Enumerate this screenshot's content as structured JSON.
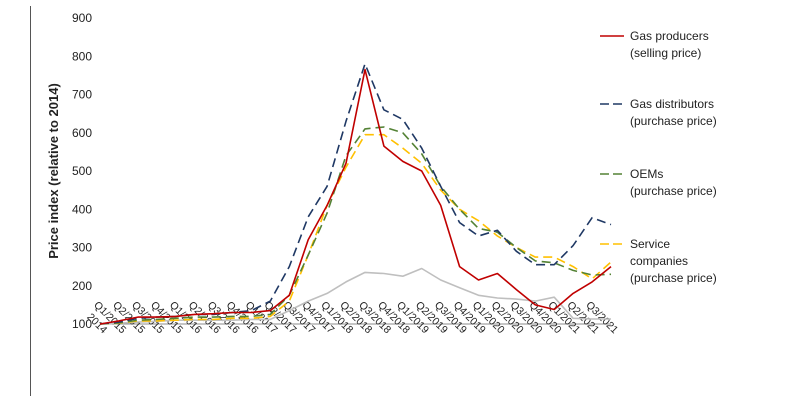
{
  "chart_data": {
    "type": "line",
    "ylabel": "Price index (relative to 2014)",
    "xlabel": "",
    "ylim": [
      100,
      900
    ],
    "yticks": [
      100,
      200,
      300,
      400,
      500,
      600,
      700,
      800,
      900
    ],
    "grid": false,
    "legend_position": "right",
    "categories": [
      "2014",
      "Q1/2015",
      "Q2/2015",
      "Q3/2015",
      "Q4/2015",
      "Q1/2016",
      "Q2/2016",
      "Q3/2016",
      "Q4/2016",
      "Q1/2017",
      "Q2/2017",
      "Q3/2017",
      "Q4/2017",
      "Q1/2018",
      "Q2/2018",
      "Q3/2018",
      "Q4/2018",
      "Q1/2019",
      "Q2/2019",
      "Q3/2019",
      "Q4/2019",
      "Q1/2020",
      "Q2/2020",
      "Q3/2020",
      "Q4/2020",
      "Q1/2021",
      "Q2/2021",
      "Q3/2021"
    ],
    "series": [
      {
        "name": "Gas producers (selling price)",
        "legend_lines": [
          "Gas producers",
          "(selling price)"
        ],
        "color": "#c00000",
        "style": "solid",
        "values": [
          100,
          108,
          118,
          118,
          120,
          125,
          127,
          130,
          130,
          135,
          175,
          320,
          410,
          520,
          765,
          565,
          525,
          500,
          410,
          250,
          215,
          232,
          190,
          150,
          138,
          180,
          210,
          250
        ]
      },
      {
        "name": "Gas distributors (purchase price)",
        "legend_lines": [
          "Gas distributors",
          "(purchase price)"
        ],
        "color": "#1f3864",
        "style": "dash",
        "values": [
          100,
          105,
          115,
          118,
          120,
          125,
          125,
          130,
          135,
          160,
          250,
          380,
          460,
          630,
          780,
          660,
          635,
          560,
          460,
          365,
          330,
          345,
          290,
          255,
          255,
          305,
          378,
          360
        ]
      },
      {
        "name": "OEMs (purchase price)",
        "legend_lines": [
          "OEMs",
          "(purchase price)"
        ],
        "color": "#548235",
        "style": "dash",
        "values": [
          100,
          103,
          110,
          112,
          115,
          118,
          118,
          120,
          120,
          125,
          175,
          280,
          390,
          540,
          610,
          615,
          600,
          545,
          460,
          400,
          350,
          340,
          300,
          265,
          260,
          240,
          228,
          230
        ]
      },
      {
        "name": "Service companies (purchase price)",
        "legend_lines": [
          "Service",
          "companies",
          "(purchase price)"
        ],
        "color": "#ffc000",
        "style": "dash",
        "values": [
          100,
          102,
          108,
          108,
          110,
          112,
          112,
          115,
          115,
          120,
          160,
          280,
          410,
          510,
          595,
          595,
          560,
          520,
          450,
          400,
          370,
          330,
          300,
          275,
          275,
          250,
          218,
          262
        ]
      },
      {
        "name": "",
        "legend_lines": [],
        "color": "#bfbfbf",
        "style": "solid",
        "values": [
          100,
          102,
          105,
          107,
          110,
          110,
          110,
          110,
          112,
          112,
          135,
          160,
          180,
          210,
          235,
          232,
          225,
          245,
          215,
          195,
          175,
          168,
          165,
          160,
          170,
          115,
          113,
          113
        ]
      }
    ]
  }
}
